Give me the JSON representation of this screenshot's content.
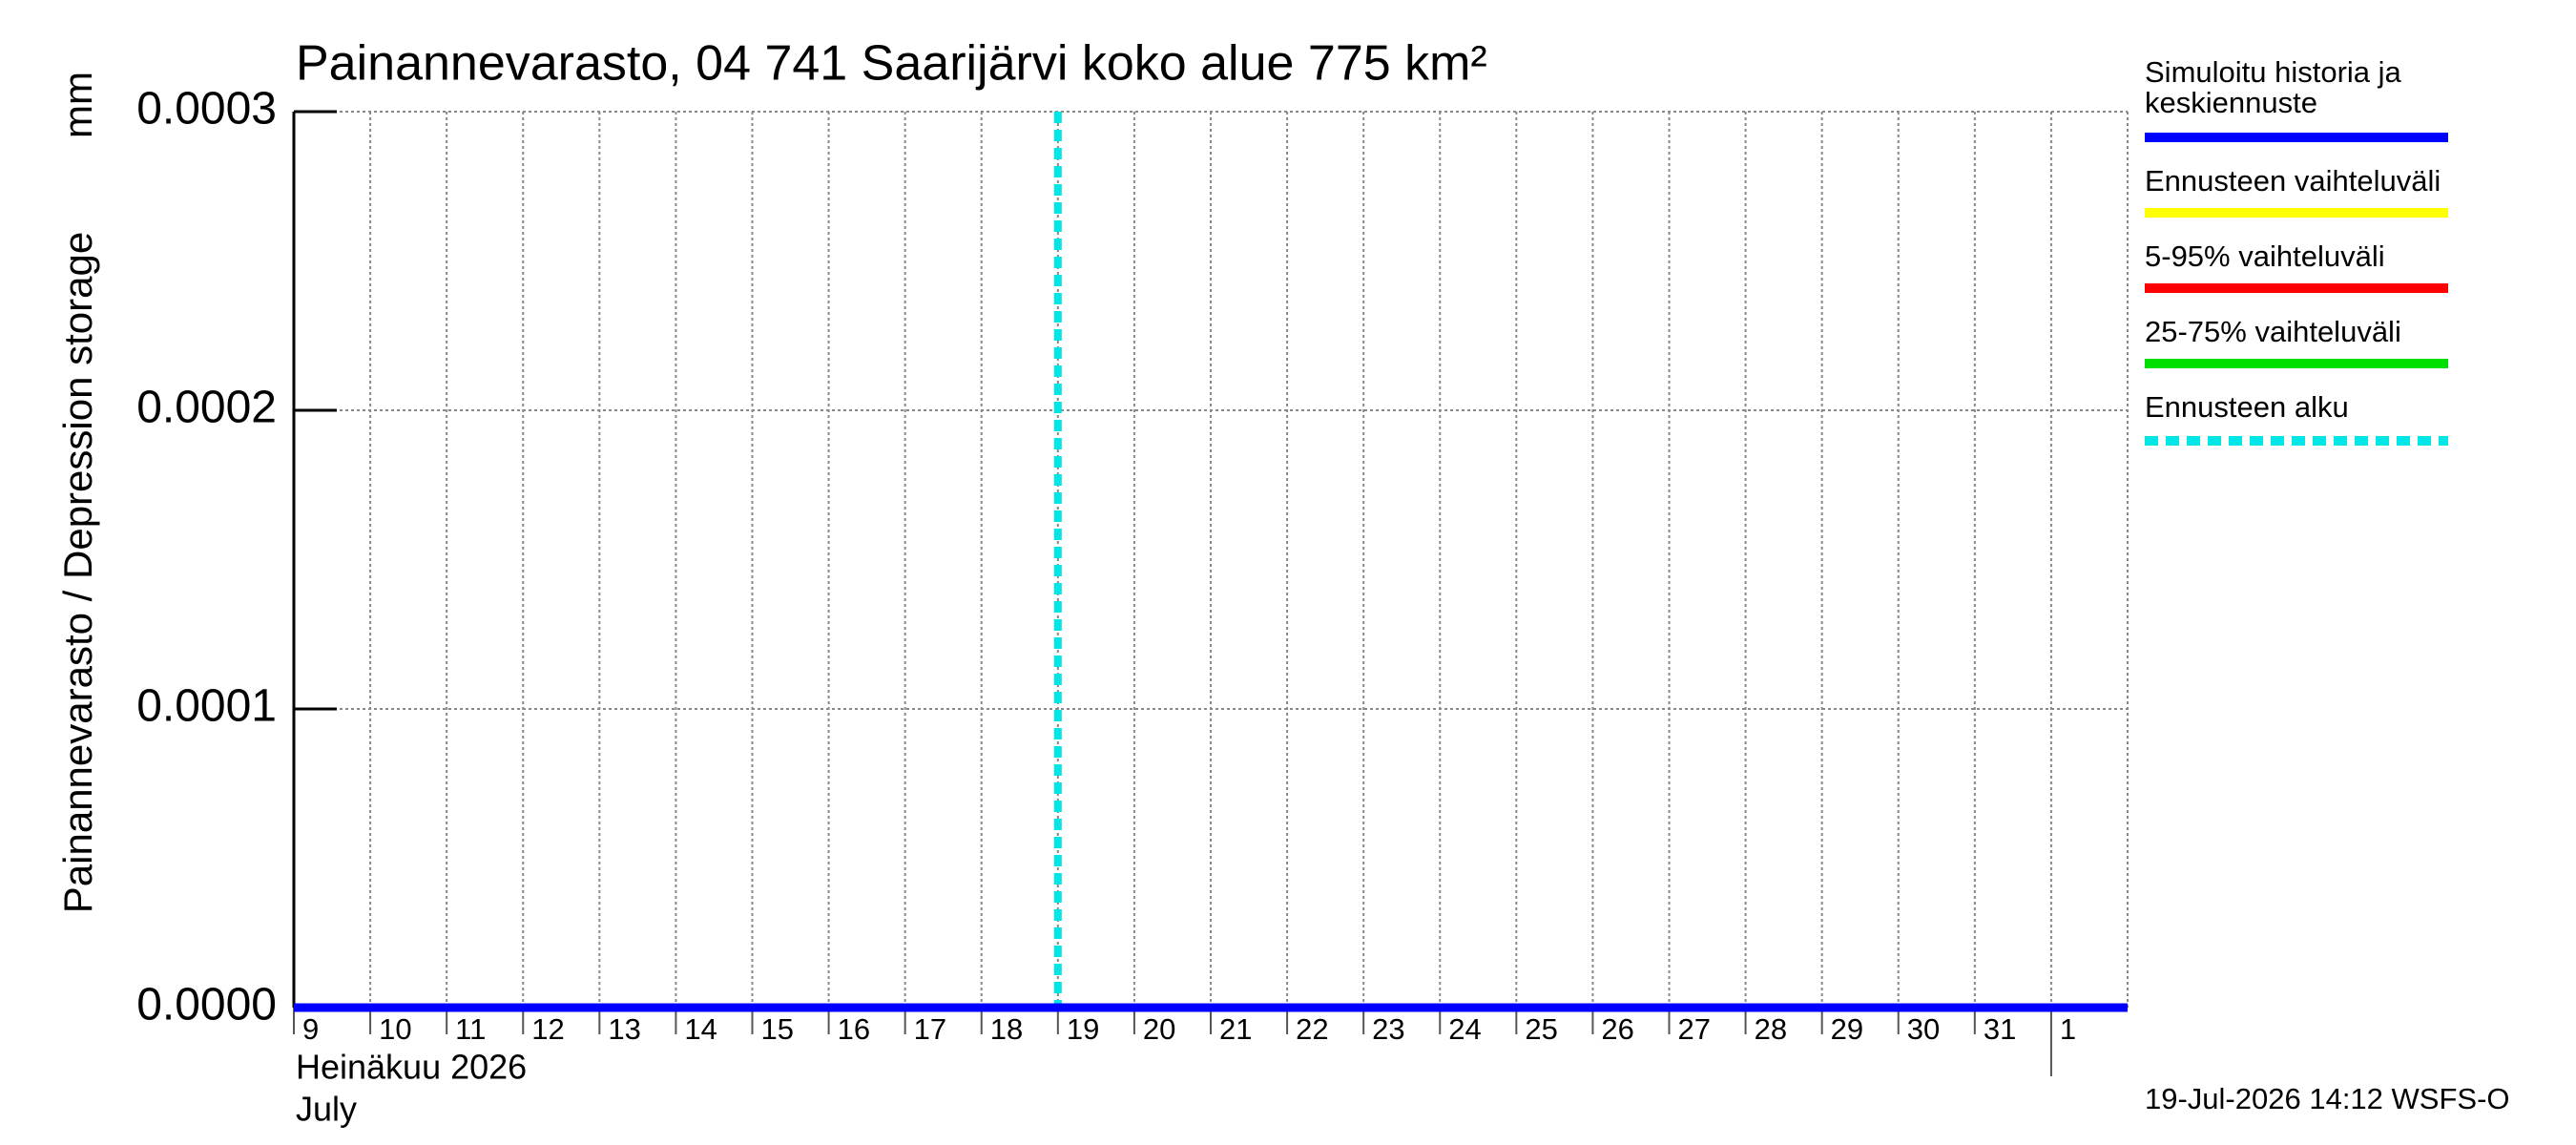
{
  "chart_data": {
    "type": "line",
    "title": "Painannevarasto, 04 741 Saarijärvi koko alue 775 km²",
    "y_label": "Painannevarasto / Depression storage",
    "y_unit": "mm",
    "x_month_label": "Heinäkuu  2026",
    "x_month_label_en": "July",
    "footer": "19-Jul-2026 14:12 WSFS-O",
    "xlim": [
      "2026-07-09",
      "2026-08-02"
    ],
    "xticks": [
      {
        "value": "2026-07-09",
        "label": "9"
      },
      {
        "value": "2026-07-10",
        "label": "10"
      },
      {
        "value": "2026-07-11",
        "label": "11"
      },
      {
        "value": "2026-07-12",
        "label": "12"
      },
      {
        "value": "2026-07-13",
        "label": "13"
      },
      {
        "value": "2026-07-14",
        "label": "14"
      },
      {
        "value": "2026-07-15",
        "label": "15"
      },
      {
        "value": "2026-07-16",
        "label": "16"
      },
      {
        "value": "2026-07-17",
        "label": "17"
      },
      {
        "value": "2026-07-18",
        "label": "18"
      },
      {
        "value": "2026-07-19",
        "label": "19"
      },
      {
        "value": "2026-07-20",
        "label": "20"
      },
      {
        "value": "2026-07-21",
        "label": "21"
      },
      {
        "value": "2026-07-22",
        "label": "22"
      },
      {
        "value": "2026-07-23",
        "label": "23"
      },
      {
        "value": "2026-07-24",
        "label": "24"
      },
      {
        "value": "2026-07-25",
        "label": "25"
      },
      {
        "value": "2026-07-26",
        "label": "26"
      },
      {
        "value": "2026-07-27",
        "label": "27"
      },
      {
        "value": "2026-07-28",
        "label": "28"
      },
      {
        "value": "2026-07-29",
        "label": "29"
      },
      {
        "value": "2026-07-30",
        "label": "30"
      },
      {
        "value": "2026-07-31",
        "label": "31"
      },
      {
        "value": "2026-08-01",
        "label": "1"
      }
    ],
    "ylim": [
      0,
      0.0003
    ],
    "yticks": [
      {
        "value": 0,
        "label": "0.0000"
      },
      {
        "value": 0.0001,
        "label": "0.0001"
      },
      {
        "value": 0.0002,
        "label": "0.0002"
      },
      {
        "value": 0.0003,
        "label": "0.0003"
      }
    ],
    "grid": true,
    "series": [
      {
        "name": "Simuloitu historia ja\nkeskiennuste",
        "color": "#0000ff",
        "x": [
          "2026-07-09",
          "2026-08-02"
        ],
        "values": [
          0,
          0
        ]
      },
      {
        "name": "Ennusteen vaihteluväli",
        "color": "#ffff00"
      },
      {
        "name": "5-95% vaihteluväli",
        "color": "#ff0000"
      },
      {
        "name": "25-75% vaihteluväli",
        "color": "#00e000"
      }
    ],
    "forecast_start": {
      "name": "Ennusteen alku",
      "color": "#00e5e5",
      "x": "2026-07-19"
    }
  }
}
